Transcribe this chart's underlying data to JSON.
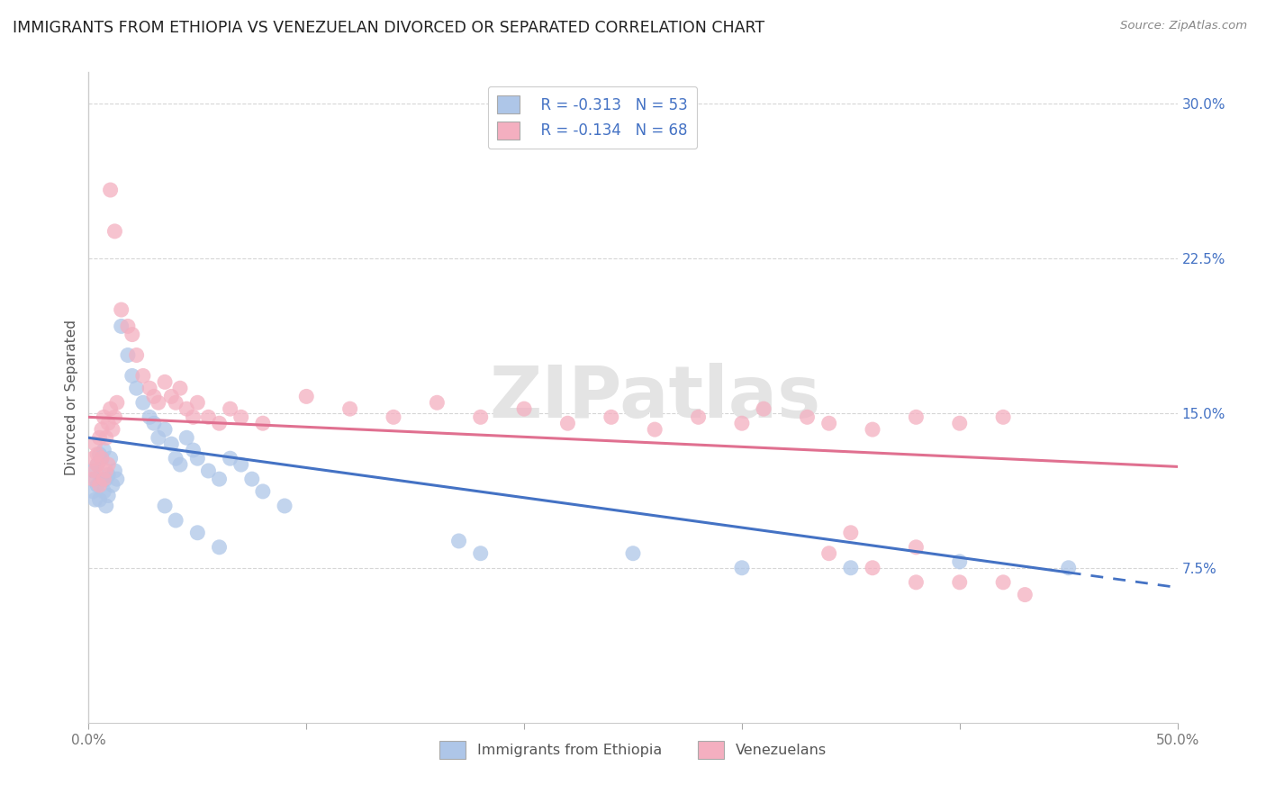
{
  "title": "IMMIGRANTS FROM ETHIOPIA VS VENEZUELAN DIVORCED OR SEPARATED CORRELATION CHART",
  "source": "Source: ZipAtlas.com",
  "ylabel": "Divorced or Separated",
  "legend_label_blue": "Immigrants from Ethiopia",
  "legend_label_pink": "Venezuelans",
  "r_blue": "-0.313",
  "n_blue": "53",
  "r_pink": "-0.134",
  "n_pink": "68",
  "xlim": [
    0.0,
    0.5
  ],
  "ylim": [
    0.0,
    0.315
  ],
  "xtick_vals": [
    0.0,
    0.1,
    0.2,
    0.3,
    0.4,
    0.5
  ],
  "xtick_labels": [
    "0.0%",
    "",
    "",
    "",
    "",
    "50.0%"
  ],
  "ytick_vals": [
    0.075,
    0.15,
    0.225,
    0.3
  ],
  "ytick_labels_right": [
    "7.5%",
    "15.0%",
    "22.5%",
    "30.0%"
  ],
  "blue_color": "#aec6e8",
  "pink_color": "#f4afc0",
  "blue_line_color": "#4472c4",
  "pink_line_color": "#e07090",
  "blue_scatter": [
    [
      0.002,
      0.122
    ],
    [
      0.003,
      0.118
    ],
    [
      0.004,
      0.125
    ],
    [
      0.005,
      0.13
    ],
    [
      0.006,
      0.128
    ],
    [
      0.007,
      0.132
    ],
    [
      0.008,
      0.118
    ],
    [
      0.009,
      0.12
    ],
    [
      0.01,
      0.128
    ],
    [
      0.011,
      0.115
    ],
    [
      0.012,
      0.122
    ],
    [
      0.013,
      0.118
    ],
    [
      0.002,
      0.112
    ],
    [
      0.003,
      0.108
    ],
    [
      0.004,
      0.115
    ],
    [
      0.005,
      0.108
    ],
    [
      0.006,
      0.118
    ],
    [
      0.007,
      0.112
    ],
    [
      0.008,
      0.105
    ],
    [
      0.009,
      0.11
    ],
    [
      0.015,
      0.192
    ],
    [
      0.018,
      0.178
    ],
    [
      0.02,
      0.168
    ],
    [
      0.022,
      0.162
    ],
    [
      0.025,
      0.155
    ],
    [
      0.028,
      0.148
    ],
    [
      0.03,
      0.145
    ],
    [
      0.032,
      0.138
    ],
    [
      0.035,
      0.142
    ],
    [
      0.038,
      0.135
    ],
    [
      0.04,
      0.128
    ],
    [
      0.042,
      0.125
    ],
    [
      0.045,
      0.138
    ],
    [
      0.048,
      0.132
    ],
    [
      0.05,
      0.128
    ],
    [
      0.055,
      0.122
    ],
    [
      0.06,
      0.118
    ],
    [
      0.065,
      0.128
    ],
    [
      0.07,
      0.125
    ],
    [
      0.075,
      0.118
    ],
    [
      0.08,
      0.112
    ],
    [
      0.09,
      0.105
    ],
    [
      0.035,
      0.105
    ],
    [
      0.04,
      0.098
    ],
    [
      0.05,
      0.092
    ],
    [
      0.06,
      0.085
    ],
    [
      0.17,
      0.088
    ],
    [
      0.18,
      0.082
    ],
    [
      0.25,
      0.082
    ],
    [
      0.3,
      0.075
    ],
    [
      0.35,
      0.075
    ],
    [
      0.4,
      0.078
    ],
    [
      0.45,
      0.075
    ]
  ],
  "pink_scatter": [
    [
      0.002,
      0.128
    ],
    [
      0.003,
      0.135
    ],
    [
      0.004,
      0.13
    ],
    [
      0.005,
      0.138
    ],
    [
      0.006,
      0.142
    ],
    [
      0.007,
      0.148
    ],
    [
      0.008,
      0.138
    ],
    [
      0.009,
      0.145
    ],
    [
      0.01,
      0.152
    ],
    [
      0.011,
      0.142
    ],
    [
      0.012,
      0.148
    ],
    [
      0.013,
      0.155
    ],
    [
      0.002,
      0.118
    ],
    [
      0.003,
      0.122
    ],
    [
      0.004,
      0.125
    ],
    [
      0.005,
      0.115
    ],
    [
      0.006,
      0.128
    ],
    [
      0.007,
      0.118
    ],
    [
      0.008,
      0.122
    ],
    [
      0.009,
      0.125
    ],
    [
      0.015,
      0.2
    ],
    [
      0.018,
      0.192
    ],
    [
      0.02,
      0.188
    ],
    [
      0.022,
      0.178
    ],
    [
      0.01,
      0.258
    ],
    [
      0.012,
      0.238
    ],
    [
      0.025,
      0.168
    ],
    [
      0.028,
      0.162
    ],
    [
      0.03,
      0.158
    ],
    [
      0.032,
      0.155
    ],
    [
      0.035,
      0.165
    ],
    [
      0.038,
      0.158
    ],
    [
      0.04,
      0.155
    ],
    [
      0.042,
      0.162
    ],
    [
      0.045,
      0.152
    ],
    [
      0.048,
      0.148
    ],
    [
      0.05,
      0.155
    ],
    [
      0.055,
      0.148
    ],
    [
      0.06,
      0.145
    ],
    [
      0.065,
      0.152
    ],
    [
      0.07,
      0.148
    ],
    [
      0.08,
      0.145
    ],
    [
      0.1,
      0.158
    ],
    [
      0.12,
      0.152
    ],
    [
      0.14,
      0.148
    ],
    [
      0.16,
      0.155
    ],
    [
      0.18,
      0.148
    ],
    [
      0.2,
      0.152
    ],
    [
      0.22,
      0.145
    ],
    [
      0.24,
      0.148
    ],
    [
      0.26,
      0.142
    ],
    [
      0.28,
      0.148
    ],
    [
      0.3,
      0.145
    ],
    [
      0.31,
      0.152
    ],
    [
      0.33,
      0.148
    ],
    [
      0.34,
      0.145
    ],
    [
      0.36,
      0.142
    ],
    [
      0.38,
      0.148
    ],
    [
      0.4,
      0.145
    ],
    [
      0.42,
      0.148
    ],
    [
      0.34,
      0.082
    ],
    [
      0.36,
      0.075
    ],
    [
      0.38,
      0.068
    ],
    [
      0.4,
      0.068
    ],
    [
      0.42,
      0.068
    ],
    [
      0.43,
      0.062
    ],
    [
      0.35,
      0.092
    ],
    [
      0.38,
      0.085
    ]
  ],
  "blue_line_intercept": 0.138,
  "blue_line_slope": -0.145,
  "pink_line_intercept": 0.148,
  "pink_line_slope": -0.048,
  "watermark_text": "ZIPatlas",
  "background_color": "#ffffff",
  "grid_color": "#cccccc"
}
